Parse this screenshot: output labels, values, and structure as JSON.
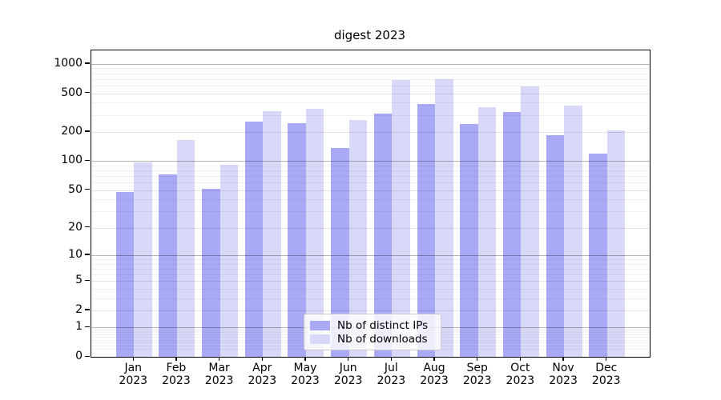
{
  "chart_data": {
    "type": "bar",
    "title": "digest 2023",
    "categories": [
      "Jan",
      "Feb",
      "Mar",
      "Apr",
      "May",
      "Jun",
      "Jul",
      "Aug",
      "Sep",
      "Oct",
      "Nov",
      "Dec"
    ],
    "year_label": "2023",
    "series": [
      {
        "name": "Nb of distinct IPs",
        "color": "#a9a9f6",
        "values": [
          48,
          73,
          52,
          255,
          245,
          138,
          310,
          385,
          243,
          322,
          186,
          119
        ]
      },
      {
        "name": "Nb of downloads",
        "color": "#d8d8f8",
        "values": [
          97,
          165,
          92,
          330,
          345,
          265,
          690,
          700,
          360,
          590,
          375,
          209
        ]
      }
    ],
    "xlabel": "",
    "ylabel": "",
    "yscale": "log1p",
    "yticks": [
      0,
      1,
      2,
      5,
      10,
      20,
      50,
      100,
      200,
      500,
      1000
    ],
    "ylim": [
      0,
      1375
    ],
    "grid": true,
    "legend_position": "lower center",
    "colors": {
      "grid_major": "#b5b5b5",
      "grid_minor": "#f0f0f0",
      "spine": "#000000",
      "background": "#ffffff"
    }
  }
}
